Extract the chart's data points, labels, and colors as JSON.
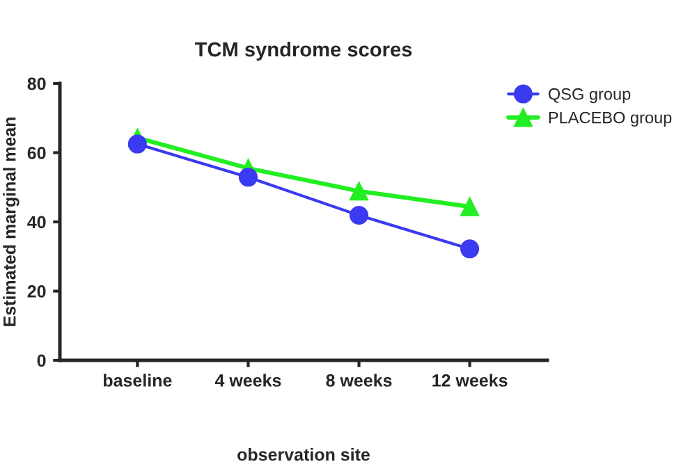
{
  "chart_data": {
    "type": "line",
    "title": "TCM syndrome scores",
    "xlabel": "observation site",
    "ylabel": "Estimated marginal mean",
    "categories": [
      "baseline",
      "4 weeks",
      "8 weeks",
      "12 weeks"
    ],
    "series": [
      {
        "name": "QSG group",
        "color": "#3a3af0",
        "values": [
          62.5,
          52.9,
          41.9,
          32.2
        ],
        "marker": "circle"
      },
      {
        "name": "PLACEBO group",
        "color": "#22ee22",
        "values": [
          64.3,
          55.5,
          48.9,
          44.4
        ],
        "marker": "triangle"
      }
    ],
    "ylim": [
      0,
      80
    ],
    "yticks": [
      0,
      20,
      40,
      60,
      80
    ],
    "grid": false,
    "legend": "top right"
  }
}
